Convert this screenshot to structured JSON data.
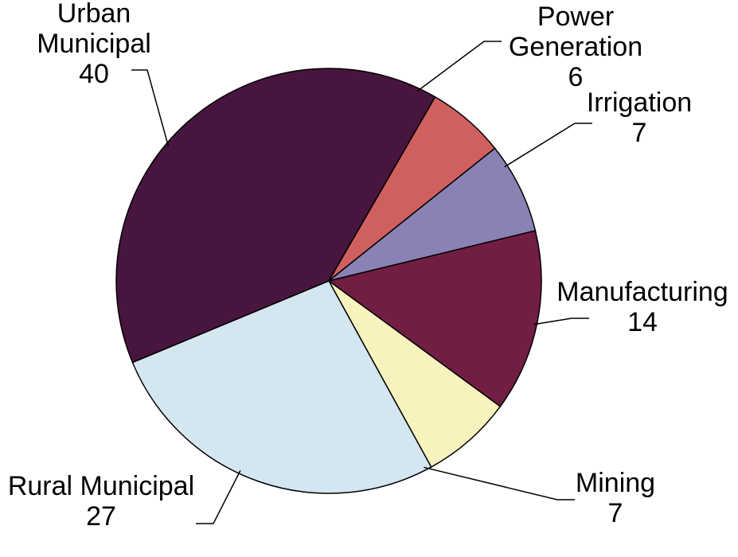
{
  "chart_data": {
    "type": "pie",
    "title": "",
    "start_angle_deg": -60,
    "direction": "clockwise",
    "slices": [
      {
        "label_lines": [
          "Power",
          "Generation"
        ],
        "value": 6,
        "value_text": "6",
        "color": "#D06060"
      },
      {
        "label_lines": [
          "Irrigation"
        ],
        "value": 7,
        "value_text": "7",
        "color": "#8A82B4"
      },
      {
        "label_lines": [
          "Manufacturing"
        ],
        "value": 14,
        "value_text": "14",
        "color": "#721D44"
      },
      {
        "label_lines": [
          "Mining"
        ],
        "value": 7,
        "value_text": "7",
        "color": "#F8F3BE"
      },
      {
        "label_lines": [
          "Rural Municipal"
        ],
        "value": 27,
        "value_text": "27",
        "color": "#D4E6EF"
      },
      {
        "label_lines": [
          "Urban",
          "Municipal"
        ],
        "value": 40,
        "value_text": "40",
        "color": "#48153F"
      }
    ]
  }
}
